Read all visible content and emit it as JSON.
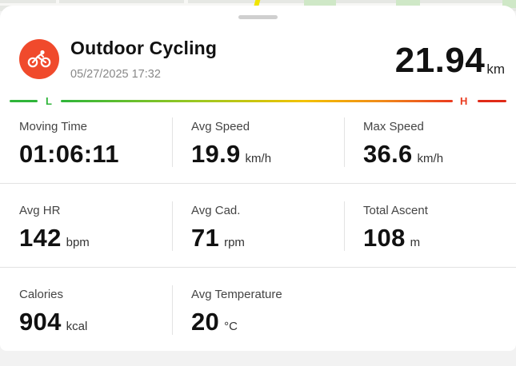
{
  "activity": {
    "title": "Outdoor Cycling",
    "datetime": "05/27/2025 17:32",
    "distance_value": "21.94",
    "distance_unit": "km",
    "icon": "cycling-icon",
    "accent_color": "#f04a2c"
  },
  "intensity_scale": {
    "low_label": "L",
    "high_label": "H",
    "low_color": "#2fb53a",
    "high_color": "#ea3b1f"
  },
  "stats": [
    {
      "label": "Moving Time",
      "value": "01:06:11",
      "unit": ""
    },
    {
      "label": "Avg Speed",
      "value": "19.9",
      "unit": "km/h"
    },
    {
      "label": "Max Speed",
      "value": "36.6",
      "unit": "km/h"
    },
    {
      "label": "Avg HR",
      "value": "142",
      "unit": "bpm"
    },
    {
      "label": "Avg Cad.",
      "value": "71",
      "unit": "rpm"
    },
    {
      "label": "Total Ascent",
      "value": "108",
      "unit": "m"
    },
    {
      "label": "Calories",
      "value": "904",
      "unit": "kcal"
    },
    {
      "label": "Avg Temperature",
      "value": "20",
      "unit": "°C"
    }
  ]
}
